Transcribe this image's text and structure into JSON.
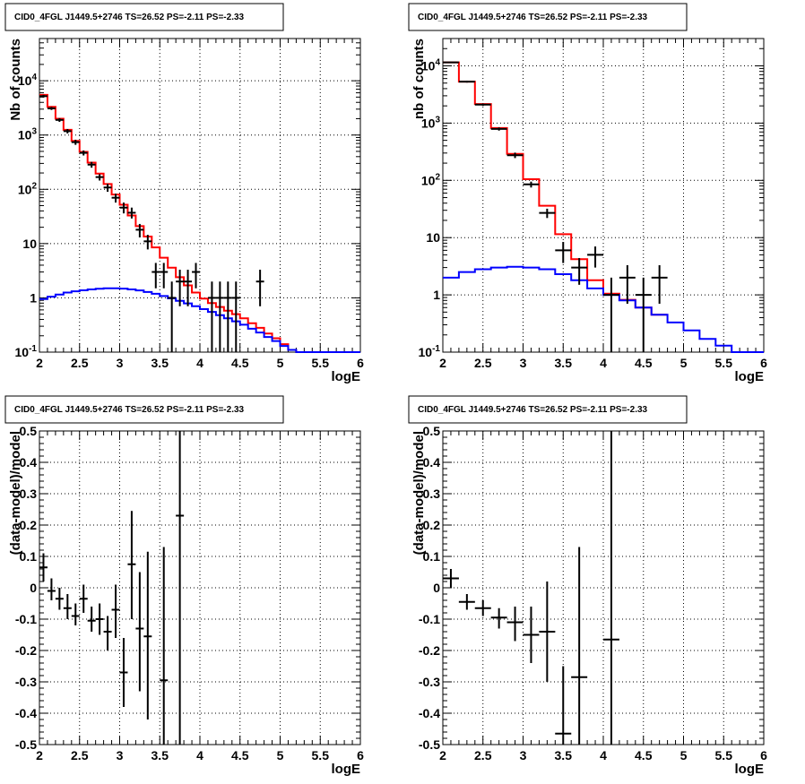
{
  "chart_data": [
    {
      "type": "line",
      "title": "CID0_4FGL J1449.5+2746 TS=26.52 PS=-2.11 PS=-2.33",
      "xlabel": "logE",
      "ylabel": "Nb of counts",
      "xlim": [
        2,
        6
      ],
      "ylim": [
        0.1,
        60000
      ],
      "yscale": "log",
      "x_ticks": [
        "2",
        "2.5",
        "3",
        "3.5",
        "4",
        "4.5",
        "5",
        "5.5",
        "6"
      ],
      "y_ticks": [
        {
          "value": 0.1,
          "base": "10",
          "exp": "-1"
        },
        {
          "value": 1,
          "label": "1"
        },
        {
          "value": 10,
          "label": "10"
        },
        {
          "value": 100,
          "base": "10",
          "exp": "2"
        },
        {
          "value": 1000,
          "base": "10",
          "exp": "3"
        },
        {
          "value": 10000,
          "base": "10",
          "exp": "4"
        }
      ],
      "grid": true,
      "bin_edges": [
        2.0,
        2.1,
        2.2,
        2.3,
        2.4,
        2.5,
        2.6,
        2.7,
        2.8,
        2.9,
        3.0,
        3.1,
        3.2,
        3.3,
        3.4,
        3.5,
        3.6,
        3.7,
        3.8,
        3.9,
        4.0,
        4.1,
        4.2,
        4.3,
        4.4,
        4.5,
        4.6,
        4.7,
        4.8,
        4.9,
        5.0,
        5.1,
        5.2,
        5.3,
        5.4,
        5.5,
        5.6,
        5.7,
        5.8,
        5.9,
        6.0
      ],
      "series": [
        {
          "color": "#ff0000",
          "style": "step",
          "values": [
            5500,
            3300,
            2000,
            1250,
            780,
            490,
            310,
            195,
            125,
            80,
            52,
            33,
            21,
            13.5,
            8.5,
            5.5,
            3.6,
            2.4,
            1.7,
            1.25,
            0.97,
            0.8,
            0.68,
            0.58,
            0.5,
            0.42,
            0.34,
            0.28,
            0.22,
            0.18,
            0.14,
            0.11,
            0.09,
            0.08,
            0.07
          ]
        },
        {
          "color": "#0000ff",
          "style": "step",
          "values": [
            0.95,
            1.05,
            1.15,
            1.25,
            1.32,
            1.38,
            1.43,
            1.47,
            1.5,
            1.5,
            1.48,
            1.43,
            1.37,
            1.28,
            1.19,
            1.08,
            0.98,
            0.88,
            0.79,
            0.7,
            0.62,
            0.55,
            0.48,
            0.42,
            0.37,
            0.32,
            0.27,
            0.23,
            0.19,
            0.16,
            0.13,
            0.11,
            0.09,
            0.08,
            0.07,
            0.07,
            0.07,
            0.07,
            0.07,
            0.07
          ]
        },
        {
          "color": "#000000",
          "style": "points",
          "points": [
            {
              "x": 2.05,
              "y": 5200,
              "lo": 4900,
              "hi": 5500
            },
            {
              "x": 2.15,
              "y": 3100,
              "lo": 2900,
              "hi": 3300
            },
            {
              "x": 2.25,
              "y": 1900,
              "lo": 1750,
              "hi": 2050
            },
            {
              "x": 2.35,
              "y": 1180,
              "lo": 1070,
              "hi": 1290
            },
            {
              "x": 2.45,
              "y": 740,
              "lo": 660,
              "hi": 820
            },
            {
              "x": 2.55,
              "y": 470,
              "lo": 420,
              "hi": 520
            },
            {
              "x": 2.65,
              "y": 285,
              "lo": 250,
              "hi": 320
            },
            {
              "x": 2.75,
              "y": 168,
              "lo": 145,
              "hi": 190
            },
            {
              "x": 2.85,
              "y": 108,
              "lo": 90,
              "hi": 126
            },
            {
              "x": 2.95,
              "y": 70,
              "lo": 57,
              "hi": 83
            },
            {
              "x": 3.05,
              "y": 46,
              "lo": 36,
              "hi": 57
            },
            {
              "x": 3.15,
              "y": 37,
              "lo": 29,
              "hi": 46
            },
            {
              "x": 3.25,
              "y": 18,
              "lo": 13,
              "hi": 23
            },
            {
              "x": 3.35,
              "y": 11,
              "lo": 7.8,
              "hi": 14.5
            },
            {
              "x": 3.45,
              "y": 3.0,
              "lo": 1.5,
              "hi": 4.4
            },
            {
              "x": 3.55,
              "y": 3.0,
              "lo": 1.5,
              "hi": 4.4
            },
            {
              "x": 3.65,
              "y": 1.0,
              "lo": 0.1,
              "hi": 2.0
            },
            {
              "x": 3.75,
              "y": 2.0,
              "lo": 0.7,
              "hi": 3.3
            },
            {
              "x": 3.85,
              "y": 2.0,
              "lo": 0.7,
              "hi": 3.3
            },
            {
              "x": 3.95,
              "y": 3.0,
              "lo": 1.5,
              "hi": 4.4
            },
            {
              "x": 4.15,
              "y": 1.0,
              "lo": 0.1,
              "hi": 2.0
            },
            {
              "x": 4.25,
              "y": 1.0,
              "lo": 0.1,
              "hi": 2.0
            },
            {
              "x": 4.35,
              "y": 1.0,
              "lo": 0.1,
              "hi": 2.0
            },
            {
              "x": 4.45,
              "y": 1.0,
              "lo": 0.1,
              "hi": 2.0
            },
            {
              "x": 4.75,
              "y": 2.0,
              "lo": 0.7,
              "hi": 3.3
            }
          ]
        }
      ]
    },
    {
      "type": "line",
      "title": "CID0_4FGL J1449.5+2746 TS=26.52 PS=-2.11 PS=-2.33",
      "xlabel": "logE",
      "ylabel": "nb of counts",
      "xlim": [
        2,
        6
      ],
      "ylim": [
        0.1,
        30000
      ],
      "yscale": "log",
      "x_ticks": [
        "2",
        "2.5",
        "3",
        "3.5",
        "4",
        "4.5",
        "5",
        "5.5",
        "6"
      ],
      "y_ticks": [
        {
          "value": 0.1,
          "base": "10",
          "exp": "-1"
        },
        {
          "value": 1,
          "label": "1"
        },
        {
          "value": 10,
          "label": "10"
        },
        {
          "value": 100,
          "base": "10",
          "exp": "2"
        },
        {
          "value": 1000,
          "base": "10",
          "exp": "3"
        },
        {
          "value": 10000,
          "base": "10",
          "exp": "4"
        }
      ],
      "grid": true,
      "bin_edges": [
        2.0,
        2.2,
        2.4,
        2.6,
        2.8,
        3.0,
        3.2,
        3.4,
        3.6,
        3.8,
        4.0,
        4.2,
        4.4,
        4.6,
        4.8,
        5.0,
        5.2,
        5.4,
        5.6,
        5.8,
        6.0
      ],
      "series": [
        {
          "color": "#ff0000",
          "style": "step",
          "values": [
            11500,
            5300,
            2150,
            820,
            290,
            105,
            36,
            11.5,
            4.2,
            1.8,
            1.05,
            0.82,
            0.6,
            0.45
          ]
        },
        {
          "color": "#0000ff",
          "style": "step",
          "values": [
            2.0,
            2.5,
            2.8,
            3.0,
            3.1,
            3.0,
            2.8,
            2.3,
            1.8,
            1.3,
            1.0,
            0.8,
            0.6,
            0.45,
            0.33,
            0.24,
            0.17,
            0.13,
            0.1,
            0.1
          ]
        },
        {
          "color": "#000000",
          "style": "points",
          "points": [
            {
              "x": 2.1,
              "y": 11500,
              "lo": 11200,
              "hi": 11800
            },
            {
              "x": 2.3,
              "y": 5300,
              "lo": 5100,
              "hi": 5500
            },
            {
              "x": 2.5,
              "y": 2100,
              "lo": 2000,
              "hi": 2200
            },
            {
              "x": 2.7,
              "y": 790,
              "lo": 740,
              "hi": 840
            },
            {
              "x": 2.9,
              "y": 275,
              "lo": 245,
              "hi": 305
            },
            {
              "x": 3.1,
              "y": 85,
              "lo": 75,
              "hi": 95
            },
            {
              "x": 3.3,
              "y": 27,
              "lo": 22,
              "hi": 32
            },
            {
              "x": 3.5,
              "y": 6.0,
              "lo": 3.6,
              "hi": 8.4
            },
            {
              "x": 3.7,
              "y": 3.0,
              "lo": 1.5,
              "hi": 4.4
            },
            {
              "x": 3.9,
              "y": 5.0,
              "lo": 3.0,
              "hi": 7.0
            },
            {
              "x": 4.1,
              "y": 1.0,
              "lo": 0.1,
              "hi": 2.0
            },
            {
              "x": 4.3,
              "y": 2.0,
              "lo": 0.7,
              "hi": 3.3
            },
            {
              "x": 4.5,
              "y": 1.0,
              "lo": 0.1,
              "hi": 2.0
            },
            {
              "x": 4.7,
              "y": 2.0,
              "lo": 0.7,
              "hi": 3.3
            }
          ]
        }
      ]
    },
    {
      "type": "scatter",
      "title": "CID0_4FGL J1449.5+2746 TS=26.52 PS=-2.11 PS=-2.33",
      "xlabel": "logE",
      "ylabel": "(data-model)/model",
      "xlim": [
        2,
        6
      ],
      "ylim": [
        -0.5,
        0.5
      ],
      "yscale": "linear",
      "x_ticks": [
        "2",
        "2.5",
        "3",
        "3.5",
        "4",
        "4.5",
        "5",
        "5.5",
        "6"
      ],
      "y_ticks": [
        {
          "value": -0.5,
          "label": "-0.5"
        },
        {
          "value": -0.4,
          "label": "-0.4"
        },
        {
          "value": -0.3,
          "label": "-0.3"
        },
        {
          "value": -0.2,
          "label": "-0.2"
        },
        {
          "value": -0.1,
          "label": "-0.1"
        },
        {
          "value": 0,
          "label": "0"
        },
        {
          "value": 0.1,
          "label": "0.1"
        },
        {
          "value": 0.2,
          "label": "0.2"
        },
        {
          "value": 0.3,
          "label": "0.3"
        },
        {
          "value": 0.4,
          "label": "0.4"
        },
        {
          "value": 0.5,
          "label": "0.5"
        }
      ],
      "grid": true,
      "points": [
        {
          "x": 2.05,
          "y": 0.065,
          "lo": 0.02,
          "hi": 0.11
        },
        {
          "x": 2.15,
          "y": -0.01,
          "lo": -0.04,
          "hi": 0.03
        },
        {
          "x": 2.25,
          "y": -0.035,
          "lo": -0.07,
          "hi": 0.0
        },
        {
          "x": 2.35,
          "y": -0.065,
          "lo": -0.1,
          "hi": -0.02
        },
        {
          "x": 2.45,
          "y": -0.09,
          "lo": -0.12,
          "hi": -0.05
        },
        {
          "x": 2.55,
          "y": -0.035,
          "lo": -0.08,
          "hi": 0.01
        },
        {
          "x": 2.65,
          "y": -0.105,
          "lo": -0.14,
          "hi": -0.06
        },
        {
          "x": 2.75,
          "y": -0.1,
          "lo": -0.15,
          "hi": -0.05
        },
        {
          "x": 2.85,
          "y": -0.14,
          "lo": -0.2,
          "hi": -0.09
        },
        {
          "x": 2.95,
          "y": -0.07,
          "lo": -0.16,
          "hi": 0.01
        },
        {
          "x": 3.05,
          "y": -0.27,
          "lo": -0.38,
          "hi": -0.16
        },
        {
          "x": 3.15,
          "y": 0.075,
          "lo": -0.1,
          "hi": 0.245
        },
        {
          "x": 3.25,
          "y": -0.13,
          "lo": -0.33,
          "hi": 0.05
        },
        {
          "x": 3.35,
          "y": -0.155,
          "lo": -0.42,
          "hi": 0.115
        },
        {
          "x": 3.55,
          "y": -0.295,
          "lo": -0.5,
          "hi": 0.13
        },
        {
          "x": 3.75,
          "y": 0.23,
          "lo": -0.5,
          "hi": 0.5
        }
      ]
    },
    {
      "type": "scatter",
      "title": "CID0_4FGL J1449.5+2746 TS=26.52 PS=-2.11 PS=-2.33",
      "xlabel": "logE",
      "ylabel": "(data-model)/model",
      "xlim": [
        2,
        6
      ],
      "ylim": [
        -0.5,
        0.5
      ],
      "yscale": "linear",
      "x_ticks": [
        "2",
        "2.5",
        "3",
        "3.5",
        "4",
        "4.5",
        "5",
        "5.5",
        "6"
      ],
      "y_ticks": [
        {
          "value": -0.5,
          "label": "-0.5"
        },
        {
          "value": -0.4,
          "label": "-0.4"
        },
        {
          "value": -0.3,
          "label": "-0.3"
        },
        {
          "value": -0.2,
          "label": "-0.2"
        },
        {
          "value": -0.1,
          "label": "-0.1"
        },
        {
          "value": 0,
          "label": "0"
        },
        {
          "value": 0.1,
          "label": "0.1"
        },
        {
          "value": 0.2,
          "label": "0.2"
        },
        {
          "value": 0.3,
          "label": "0.3"
        },
        {
          "value": 0.4,
          "label": "0.4"
        },
        {
          "value": 0.5,
          "label": "0.5"
        }
      ],
      "grid": true,
      "points": [
        {
          "x": 2.1,
          "y": 0.03,
          "lo": 0.0,
          "hi": 0.06
        },
        {
          "x": 2.3,
          "y": -0.045,
          "lo": -0.07,
          "hi": -0.02
        },
        {
          "x": 2.5,
          "y": -0.065,
          "lo": -0.09,
          "hi": -0.04
        },
        {
          "x": 2.7,
          "y": -0.095,
          "lo": -0.13,
          "hi": -0.065
        },
        {
          "x": 2.9,
          "y": -0.11,
          "lo": -0.17,
          "hi": -0.06
        },
        {
          "x": 3.1,
          "y": -0.15,
          "lo": -0.24,
          "hi": -0.06
        },
        {
          "x": 3.3,
          "y": -0.14,
          "lo": -0.3,
          "hi": 0.02
        },
        {
          "x": 3.5,
          "y": -0.465,
          "lo": -0.5,
          "hi": -0.25
        },
        {
          "x": 3.7,
          "y": -0.285,
          "lo": -0.5,
          "hi": 0.13
        },
        {
          "x": 4.1,
          "y": -0.165,
          "lo": -0.5,
          "hi": 0.5
        }
      ]
    }
  ]
}
